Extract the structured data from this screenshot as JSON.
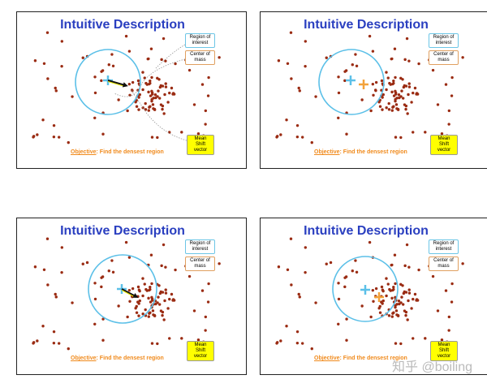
{
  "slides": [
    {
      "title": "Intuitive Description",
      "legend": [
        "Region of interest",
        "Center of mass",
        "Mean Shift vector"
      ],
      "objective_label": "Objective",
      "objective_text": ": Find the densest region"
    },
    {
      "title": "Intuitive Description",
      "legend": [
        "Region of interest",
        "Center of mass",
        "Mean Shift vector"
      ],
      "objective_label": "Objective",
      "objective_text": ": Find the densest region"
    },
    {
      "title": "Intuitive Description",
      "legend": [
        "Region of interest",
        "Center of mass",
        "Mean Shift vector"
      ],
      "objective_label": "Objective",
      "objective_text": ": Find the densest region"
    },
    {
      "title": "Intuitive Description",
      "legend": [
        "Region of interest",
        "Center of mass",
        "Mean Shift vector"
      ],
      "objective_label": "Objective",
      "objective_text": ": Find the densest region"
    }
  ],
  "watermark": "知乎 @boiling"
}
